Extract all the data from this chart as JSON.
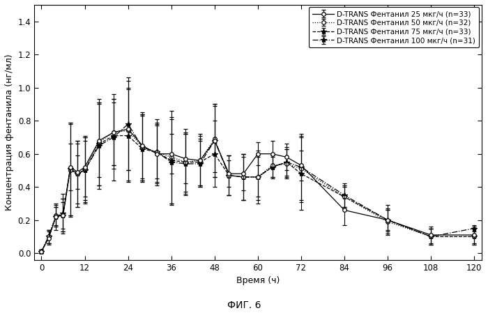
{
  "title": "ФИГ. 6",
  "xlabel": "Время (ч)",
  "ylabel": "Концентрация фентанила (нг/мл)",
  "xlim": [
    -2,
    122
  ],
  "ylim": [
    -0.04,
    1.5
  ],
  "yticks": [
    0.0,
    0.2,
    0.4,
    0.6,
    0.8,
    1.0,
    1.2,
    1.4
  ],
  "xticks": [
    0,
    12,
    24,
    36,
    48,
    60,
    72,
    84,
    96,
    108,
    120
  ],
  "series": [
    {
      "label": "D-TRANS Фентанил 25 мкг/ч (n=33)",
      "linestyle": "-",
      "marker": "o",
      "markersize": 4,
      "color": "black",
      "x": [
        0,
        2,
        4,
        6,
        8,
        10,
        12,
        16,
        20,
        24,
        28,
        32,
        36,
        40,
        44,
        48,
        52,
        56,
        60,
        64,
        68,
        72,
        84,
        96,
        108,
        120
      ],
      "y": [
        0.01,
        0.09,
        0.22,
        0.23,
        0.52,
        0.49,
        0.52,
        0.68,
        0.73,
        0.75,
        0.65,
        0.6,
        0.6,
        0.57,
        0.56,
        0.68,
        0.48,
        0.48,
        0.6,
        0.6,
        0.58,
        0.53,
        0.26,
        0.2,
        0.11,
        0.11
      ],
      "yerr": [
        0.01,
        0.04,
        0.06,
        0.08,
        0.14,
        0.1,
        0.18,
        0.22,
        0.2,
        0.25,
        0.2,
        0.18,
        0.12,
        0.15,
        0.15,
        0.22,
        0.08,
        0.1,
        0.07,
        0.08,
        0.08,
        0.09,
        0.09,
        0.09,
        0.05,
        0.05
      ]
    },
    {
      "label": "D-TRANS Фентанил 50 мкг/ч (n=32)",
      "linestyle": ":",
      "marker": "o",
      "markersize": 4,
      "color": "black",
      "x": [
        0,
        2,
        4,
        6,
        8,
        10,
        12,
        16,
        20,
        24,
        28,
        32,
        36,
        40,
        44,
        48,
        52,
        56,
        60,
        64,
        68,
        72,
        84,
        96,
        108,
        120
      ],
      "y": [
        0.01,
        0.1,
        0.23,
        0.23,
        0.5,
        0.48,
        0.51,
        0.67,
        0.73,
        0.74,
        0.64,
        0.61,
        0.58,
        0.55,
        0.56,
        0.69,
        0.47,
        0.46,
        0.46,
        0.53,
        0.54,
        0.51,
        0.34,
        0.19,
        0.1,
        0.1
      ],
      "yerr": [
        0.01,
        0.04,
        0.06,
        0.1,
        0.28,
        0.2,
        0.2,
        0.26,
        0.2,
        0.3,
        0.2,
        0.2,
        0.28,
        0.2,
        0.16,
        0.2,
        0.12,
        0.14,
        0.16,
        0.07,
        0.09,
        0.2,
        0.07,
        0.07,
        0.05,
        0.05
      ]
    },
    {
      "label": "D-TRANS Фентанил 75 мкг/ч (n=33)",
      "linestyle": "--",
      "marker": "*",
      "markersize": 6,
      "color": "black",
      "x": [
        0,
        2,
        4,
        6,
        8,
        10,
        12,
        16,
        20,
        24,
        28,
        32,
        36,
        40,
        44,
        48,
        52,
        56,
        60,
        64,
        68,
        72,
        84,
        96,
        108,
        120
      ],
      "y": [
        0.01,
        0.1,
        0.22,
        0.23,
        0.51,
        0.48,
        0.5,
        0.66,
        0.71,
        0.71,
        0.63,
        0.61,
        0.56,
        0.55,
        0.55,
        0.6,
        0.47,
        0.46,
        0.46,
        0.52,
        0.55,
        0.48,
        0.34,
        0.2,
        0.1,
        0.1
      ],
      "yerr": [
        0.01,
        0.04,
        0.06,
        0.1,
        0.28,
        0.2,
        0.18,
        0.25,
        0.2,
        0.28,
        0.2,
        0.18,
        0.26,
        0.18,
        0.14,
        0.2,
        0.12,
        0.14,
        0.14,
        0.06,
        0.08,
        0.22,
        0.06,
        0.06,
        0.05,
        0.05
      ]
    },
    {
      "label": "D-TRANS Фентанил 100 мкг/ч (n=31)",
      "linestyle": "-.",
      "marker": "*",
      "markersize": 6,
      "color": "black",
      "x": [
        0,
        2,
        4,
        6,
        8,
        10,
        12,
        16,
        20,
        24,
        28,
        32,
        36,
        40,
        44,
        48,
        52,
        56,
        60,
        64,
        68,
        72,
        84,
        96,
        108,
        120
      ],
      "y": [
        0.01,
        0.1,
        0.22,
        0.24,
        0.51,
        0.48,
        0.5,
        0.65,
        0.7,
        0.78,
        0.64,
        0.61,
        0.55,
        0.54,
        0.54,
        0.68,
        0.47,
        0.46,
        0.46,
        0.52,
        0.55,
        0.52,
        0.35,
        0.2,
        0.1,
        0.15
      ],
      "yerr": [
        0.01,
        0.04,
        0.08,
        0.12,
        0.28,
        0.18,
        0.2,
        0.26,
        0.26,
        0.28,
        0.2,
        0.16,
        0.26,
        0.18,
        0.14,
        0.22,
        0.12,
        0.14,
        0.12,
        0.07,
        0.09,
        0.2,
        0.07,
        0.07,
        0.05,
        0.02
      ]
    }
  ],
  "background_color": "white",
  "legend_fontsize": 7.5,
  "axis_label_fontsize": 9,
  "tick_fontsize": 8.5,
  "title_fontsize": 10
}
